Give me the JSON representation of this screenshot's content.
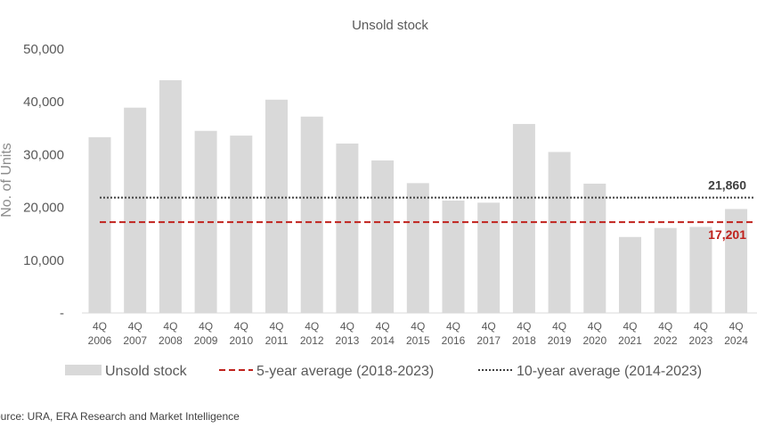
{
  "chart_data": {
    "type": "bar",
    "title": "Unsold stock",
    "ylabel": "No. of Units",
    "xlabel": "",
    "ylim": [
      0,
      50000
    ],
    "yticks": [
      "-",
      "10,000",
      "20,000",
      "30,000",
      "40,000",
      "50,000"
    ],
    "categories": [
      [
        "4Q",
        "2006"
      ],
      [
        "4Q",
        "2007"
      ],
      [
        "4Q",
        "2008"
      ],
      [
        "4Q",
        "2009"
      ],
      [
        "4Q",
        "2010"
      ],
      [
        "4Q",
        "2011"
      ],
      [
        "4Q",
        "2012"
      ],
      [
        "4Q",
        "2013"
      ],
      [
        "4Q",
        "2014"
      ],
      [
        "4Q",
        "2015"
      ],
      [
        "4Q",
        "2016"
      ],
      [
        "4Q",
        "2017"
      ],
      [
        "4Q",
        "2018"
      ],
      [
        "4Q",
        "2019"
      ],
      [
        "4Q",
        "2020"
      ],
      [
        "4Q",
        "2021"
      ],
      [
        "4Q",
        "2022"
      ],
      [
        "4Q",
        "2023"
      ],
      [
        "4Q",
        "2024"
      ]
    ],
    "series": [
      {
        "name": "Unsold stock",
        "color": "#d9d9d9",
        "values": [
          33300,
          38900,
          44100,
          34500,
          33600,
          40400,
          37200,
          32100,
          28900,
          24600,
          21300,
          20900,
          35800,
          30500,
          24500,
          14400,
          16100,
          16300,
          19700
        ]
      }
    ],
    "reference_lines": [
      {
        "name": "5-year average (2018-2023)",
        "value": 17201,
        "label": "17,201",
        "color": "#c0211c",
        "style": "dashed"
      },
      {
        "name": "10-year average (2014-2023)",
        "value": 21860,
        "label": "21,860",
        "color": "#404040",
        "style": "dotted"
      }
    ],
    "grid": false,
    "legend_position": "bottom"
  },
  "legend": [
    {
      "label": "Unsold stock",
      "kind": "bar",
      "color": "#d9d9d9"
    },
    {
      "label": "5-year average (2018-2023)",
      "kind": "dashed",
      "color": "#c0211c"
    },
    {
      "label": "10-year average (2014-2023)",
      "kind": "dotted",
      "color": "#404040"
    }
  ],
  "source": "ource: URA, ERA Research and Market Intelligence"
}
